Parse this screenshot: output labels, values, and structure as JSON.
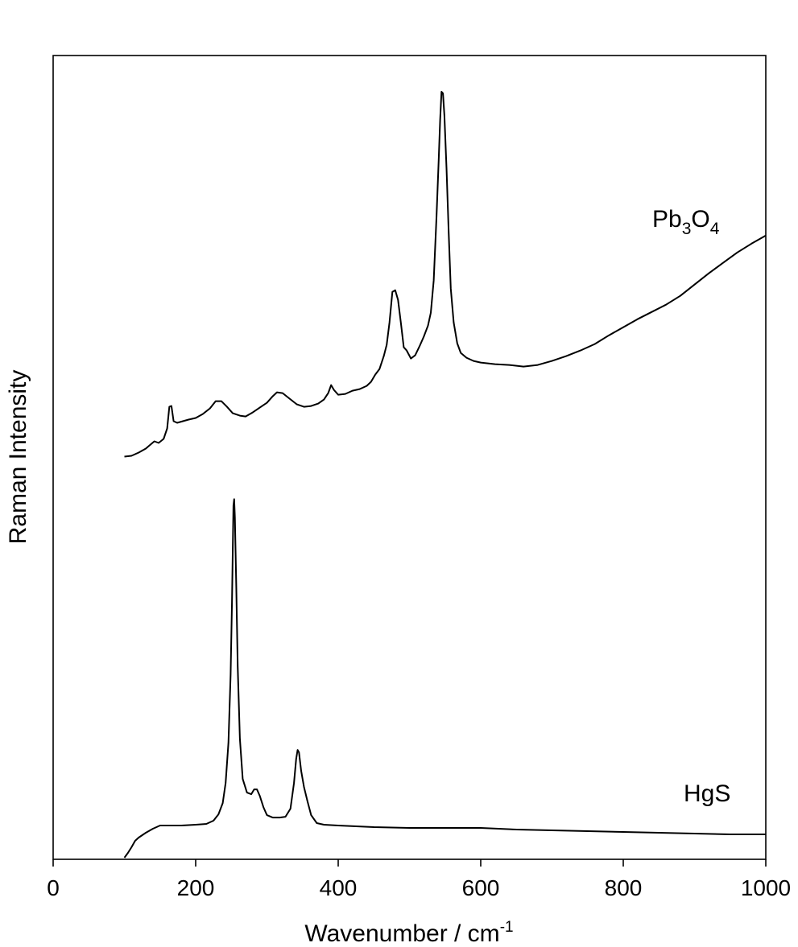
{
  "chart_data": {
    "type": "line",
    "xlabel": "Wavenumber / cm",
    "xlabel_superscript": "-1",
    "ylabel": "Raman Intensity",
    "xlim": [
      0,
      1000
    ],
    "ylim": [
      0,
      100
    ],
    "x_ticks": [
      "0",
      "200",
      "400",
      "600",
      "800",
      "1000"
    ],
    "y_ticks_shown": false,
    "grid": false,
    "series": [
      {
        "name": "Pb3O4",
        "label_parts": {
          "a": "Pb",
          "b": "3",
          "c": "O",
          "d": "4"
        },
        "color": "#000000",
        "points": [
          [
            100,
            50.1
          ],
          [
            110,
            50.2
          ],
          [
            120,
            50.6
          ],
          [
            130,
            51.1
          ],
          [
            138,
            51.7
          ],
          [
            142,
            52.0
          ],
          [
            148,
            51.8
          ],
          [
            155,
            52.3
          ],
          [
            160,
            53.6
          ],
          [
            163,
            56.3
          ],
          [
            166,
            56.4
          ],
          [
            169,
            54.5
          ],
          [
            174,
            54.3
          ],
          [
            182,
            54.5
          ],
          [
            190,
            54.7
          ],
          [
            200,
            54.9
          ],
          [
            210,
            55.4
          ],
          [
            220,
            56.1
          ],
          [
            228,
            57.0
          ],
          [
            236,
            57.0
          ],
          [
            244,
            56.3
          ],
          [
            252,
            55.5
          ],
          [
            262,
            55.2
          ],
          [
            270,
            55.1
          ],
          [
            280,
            55.6
          ],
          [
            290,
            56.2
          ],
          [
            300,
            56.8
          ],
          [
            308,
            57.6
          ],
          [
            314,
            58.1
          ],
          [
            322,
            58.0
          ],
          [
            332,
            57.3
          ],
          [
            342,
            56.6
          ],
          [
            352,
            56.3
          ],
          [
            362,
            56.4
          ],
          [
            372,
            56.7
          ],
          [
            380,
            57.2
          ],
          [
            386,
            58.0
          ],
          [
            390,
            59.0
          ],
          [
            394,
            58.4
          ],
          [
            400,
            57.8
          ],
          [
            410,
            57.9
          ],
          [
            420,
            58.3
          ],
          [
            430,
            58.5
          ],
          [
            440,
            58.9
          ],
          [
            446,
            59.4
          ],
          [
            452,
            60.3
          ],
          [
            458,
            61.0
          ],
          [
            464,
            62.6
          ],
          [
            468,
            64.0
          ],
          [
            472,
            66.8
          ],
          [
            476,
            70.6
          ],
          [
            480,
            70.8
          ],
          [
            484,
            69.6
          ],
          [
            488,
            66.7
          ],
          [
            492,
            63.7
          ],
          [
            496,
            63.3
          ],
          [
            502,
            62.3
          ],
          [
            508,
            62.7
          ],
          [
            514,
            63.8
          ],
          [
            520,
            65.0
          ],
          [
            526,
            66.4
          ],
          [
            530,
            68.0
          ],
          [
            534,
            72.0
          ],
          [
            538,
            80.0
          ],
          [
            541,
            87.0
          ],
          [
            543,
            92.0
          ],
          [
            545,
            95.5
          ],
          [
            547,
            95.3
          ],
          [
            549,
            92.5
          ],
          [
            552,
            86.0
          ],
          [
            555,
            78.0
          ],
          [
            558,
            71.0
          ],
          [
            562,
            66.8
          ],
          [
            567,
            64.2
          ],
          [
            572,
            63.0
          ],
          [
            580,
            62.4
          ],
          [
            590,
            62.0
          ],
          [
            600,
            61.8
          ],
          [
            620,
            61.6
          ],
          [
            640,
            61.5
          ],
          [
            660,
            61.3
          ],
          [
            680,
            61.5
          ],
          [
            700,
            62.0
          ],
          [
            720,
            62.6
          ],
          [
            740,
            63.3
          ],
          [
            760,
            64.1
          ],
          [
            780,
            65.2
          ],
          [
            800,
            66.2
          ],
          [
            820,
            67.2
          ],
          [
            840,
            68.1
          ],
          [
            860,
            69.0
          ],
          [
            880,
            70.1
          ],
          [
            900,
            71.5
          ],
          [
            920,
            72.9
          ],
          [
            940,
            74.2
          ],
          [
            960,
            75.5
          ],
          [
            980,
            76.6
          ],
          [
            1000,
            77.6
          ]
        ]
      },
      {
        "name": "HgS",
        "label_parts": {
          "a": "HgS"
        },
        "color": "#000000",
        "points": [
          [
            100,
            0.2
          ],
          [
            105,
            0.8
          ],
          [
            110,
            1.5
          ],
          [
            115,
            2.3
          ],
          [
            120,
            2.7
          ],
          [
            130,
            3.3
          ],
          [
            140,
            3.8
          ],
          [
            150,
            4.2
          ],
          [
            160,
            4.2
          ],
          [
            180,
            4.2
          ],
          [
            200,
            4.3
          ],
          [
            215,
            4.4
          ],
          [
            225,
            4.8
          ],
          [
            232,
            5.6
          ],
          [
            238,
            7.0
          ],
          [
            242,
            9.5
          ],
          [
            246,
            14.5
          ],
          [
            249,
            23.0
          ],
          [
            251,
            32.0
          ],
          [
            252,
            38.0
          ],
          [
            253,
            44.0
          ],
          [
            254,
            44.8
          ],
          [
            255,
            42.5
          ],
          [
            257,
            34.0
          ],
          [
            259,
            24.0
          ],
          [
            262,
            15.0
          ],
          [
            266,
            10.0
          ],
          [
            272,
            8.3
          ],
          [
            278,
            8.1
          ],
          [
            282,
            8.7
          ],
          [
            286,
            8.7
          ],
          [
            290,
            7.9
          ],
          [
            295,
            6.5
          ],
          [
            300,
            5.5
          ],
          [
            308,
            5.2
          ],
          [
            318,
            5.2
          ],
          [
            326,
            5.3
          ],
          [
            333,
            6.3
          ],
          [
            338,
            9.5
          ],
          [
            341,
            12.5
          ],
          [
            343,
            13.6
          ],
          [
            345,
            13.3
          ],
          [
            348,
            11.0
          ],
          [
            352,
            9.0
          ],
          [
            357,
            7.2
          ],
          [
            362,
            5.5
          ],
          [
            370,
            4.5
          ],
          [
            380,
            4.3
          ],
          [
            400,
            4.2
          ],
          [
            450,
            4.0
          ],
          [
            500,
            3.9
          ],
          [
            550,
            3.9
          ],
          [
            600,
            3.9
          ],
          [
            650,
            3.7
          ],
          [
            700,
            3.6
          ],
          [
            750,
            3.5
          ],
          [
            800,
            3.4
          ],
          [
            850,
            3.3
          ],
          [
            900,
            3.2
          ],
          [
            950,
            3.1
          ],
          [
            1000,
            3.1
          ]
        ]
      }
    ]
  }
}
